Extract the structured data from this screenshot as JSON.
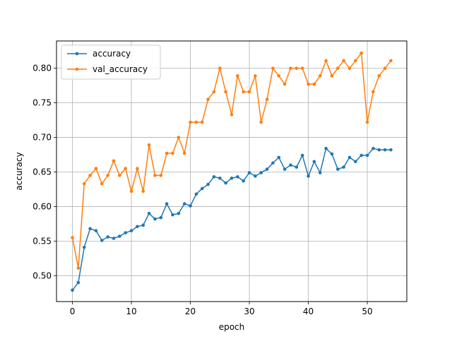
{
  "chart_data": {
    "type": "line",
    "title": "",
    "xlabel": "epoch",
    "ylabel": "accuracy",
    "xlim": [
      -2.7,
      56.7
    ],
    "ylim": [
      0.4625,
      0.8395
    ],
    "xticks": [
      0,
      10,
      20,
      30,
      40,
      50
    ],
    "yticks": [
      0.5,
      0.55,
      0.6,
      0.65,
      0.7,
      0.75,
      0.8
    ],
    "ytick_labels": [
      "0.50",
      "0.55",
      "0.60",
      "0.65",
      "0.70",
      "0.75",
      "0.80"
    ],
    "grid": true,
    "legend_position": "upper-left",
    "x": [
      0,
      1,
      2,
      3,
      4,
      5,
      6,
      7,
      8,
      9,
      10,
      11,
      12,
      13,
      14,
      15,
      16,
      17,
      18,
      19,
      20,
      21,
      22,
      23,
      24,
      25,
      26,
      27,
      28,
      29,
      30,
      31,
      32,
      33,
      34,
      35,
      36,
      37,
      38,
      39,
      40,
      41,
      42,
      43,
      44,
      45,
      46,
      47,
      48,
      49,
      50,
      51,
      52,
      53,
      54
    ],
    "series": [
      {
        "name": "accuracy",
        "color": "#1f77b4",
        "values": [
          0.479,
          0.49,
          0.541,
          0.568,
          0.565,
          0.551,
          0.556,
          0.554,
          0.557,
          0.562,
          0.565,
          0.571,
          0.573,
          0.59,
          0.582,
          0.584,
          0.604,
          0.588,
          0.59,
          0.604,
          0.601,
          0.618,
          0.626,
          0.632,
          0.643,
          0.641,
          0.634,
          0.641,
          0.643,
          0.637,
          0.649,
          0.644,
          0.649,
          0.654,
          0.663,
          0.671,
          0.654,
          0.66,
          0.657,
          0.674,
          0.644,
          0.665,
          0.649,
          0.684,
          0.676,
          0.654,
          0.657,
          0.671,
          0.665,
          0.674,
          0.674,
          0.684,
          0.682,
          0.682,
          0.682
        ]
      },
      {
        "name": "val_accuracy",
        "color": "#ff7f0e",
        "values": [
          0.555,
          0.511,
          0.633,
          0.645,
          0.655,
          0.633,
          0.645,
          0.666,
          0.645,
          0.655,
          0.622,
          0.655,
          0.622,
          0.689,
          0.645,
          0.645,
          0.677,
          0.677,
          0.7,
          0.677,
          0.722,
          0.722,
          0.722,
          0.755,
          0.766,
          0.8,
          0.766,
          0.733,
          0.789,
          0.766,
          0.766,
          0.789,
          0.722,
          0.755,
          0.8,
          0.789,
          0.777,
          0.8,
          0.8,
          0.8,
          0.777,
          0.777,
          0.789,
          0.811,
          0.789,
          0.8,
          0.811,
          0.8,
          0.811,
          0.822,
          0.722,
          0.766,
          0.789,
          0.8,
          0.811
        ]
      }
    ]
  }
}
